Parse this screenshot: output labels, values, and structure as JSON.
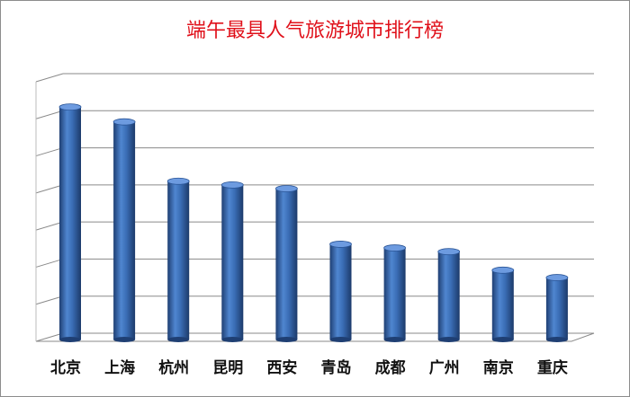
{
  "chart_data": {
    "type": "bar",
    "title": "端午最具人气旅游城市排行榜",
    "categories": [
      "北京",
      "上海",
      "杭州",
      "昆明",
      "西安",
      "青岛",
      "成都",
      "广州",
      "南京",
      "重庆"
    ],
    "values": [
      6.1,
      5.7,
      4.1,
      4.0,
      3.9,
      2.4,
      2.3,
      2.2,
      1.7,
      1.5
    ],
    "color": "#3a6db5",
    "title_color": "#e0101a",
    "ylim": [
      0,
      7
    ],
    "yticks": [
      0,
      1,
      2,
      3,
      4,
      5,
      6,
      7
    ],
    "grid": true
  }
}
